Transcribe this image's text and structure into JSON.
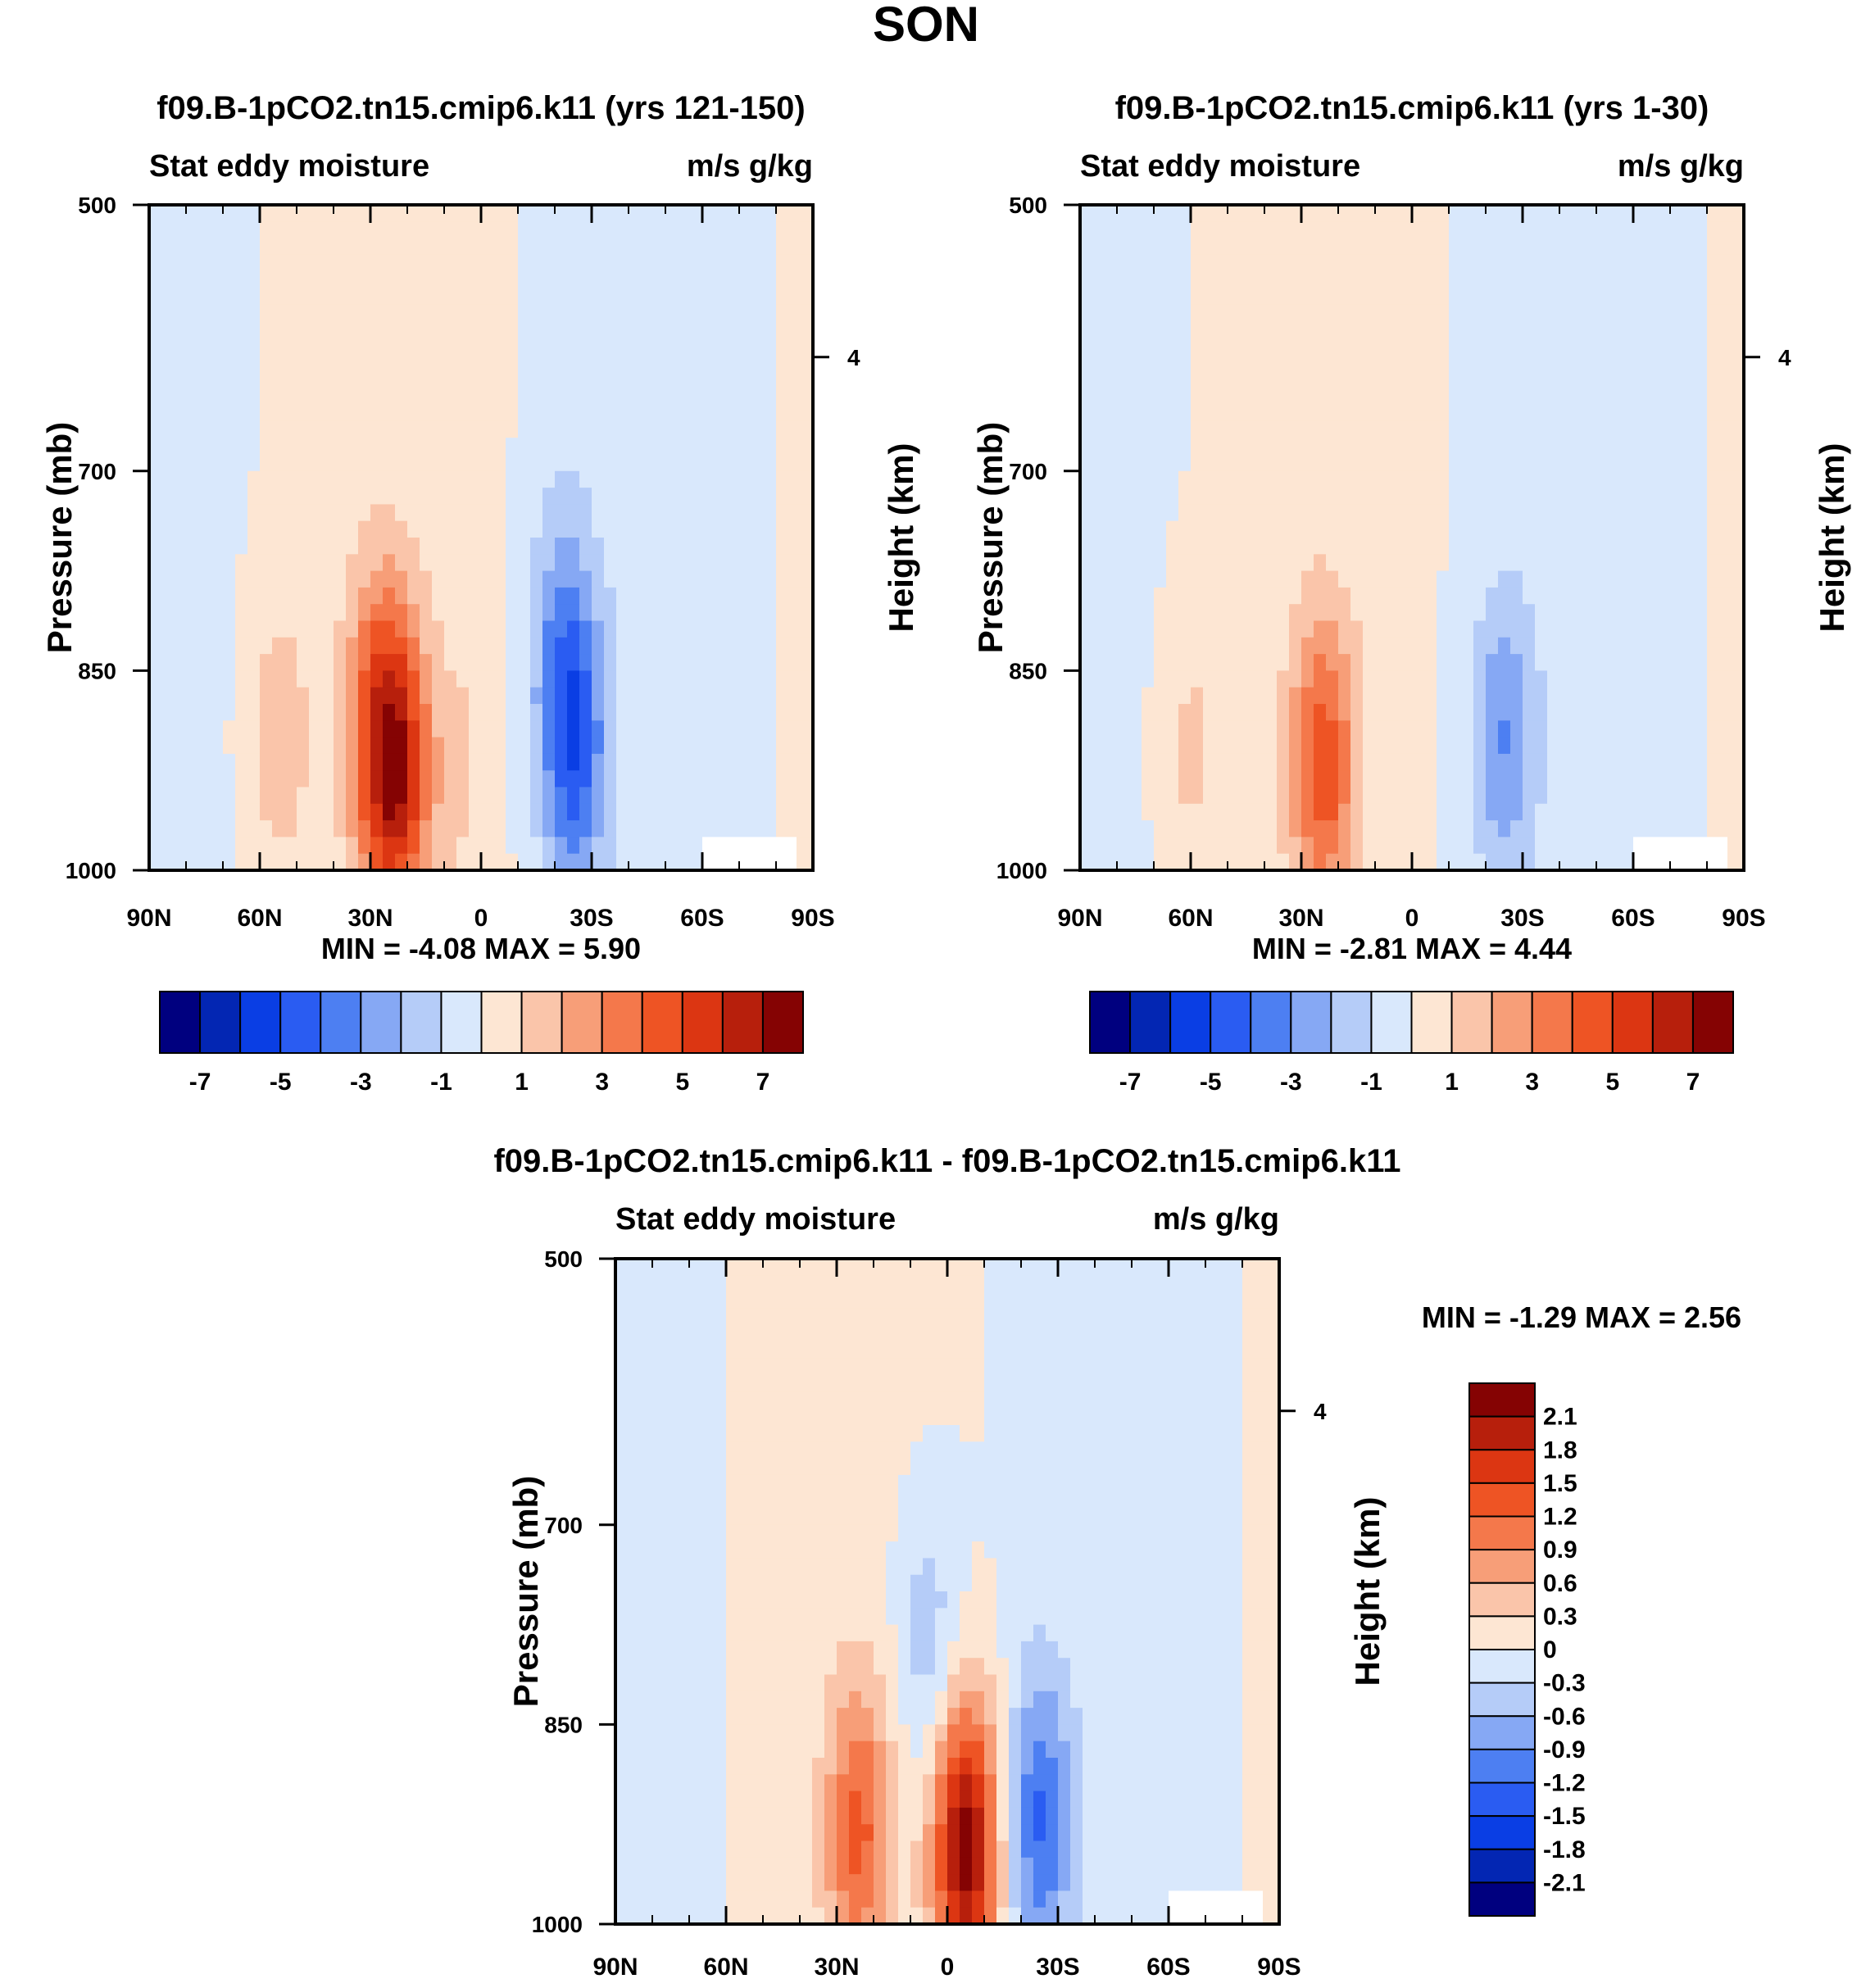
{
  "page_title": "SON",
  "chart_data": [
    {
      "type": "contour",
      "title": "f09.B-1pCO2.tn15.cmip6.k11 (yrs 121-150)",
      "left_subtitle": "Stat eddy moisture",
      "right_subtitle": "m/s g/kg",
      "xlabel": "",
      "ylabel": "Pressure (mb)",
      "y2label": "Height (km)",
      "x_ticks": [
        "90N",
        "60N",
        "30N",
        "0",
        "30S",
        "60S",
        "90S"
      ],
      "x_values": [
        90,
        60,
        30,
        0,
        -30,
        -60,
        -90
      ],
      "y_ticks": [
        "500",
        "700",
        "850",
        "1000"
      ],
      "y_values": [
        500,
        700,
        850,
        1000
      ],
      "y2_ticks": [
        "4"
      ],
      "y2_values": [
        4
      ],
      "ylim": [
        500,
        1000
      ],
      "xlim": [
        90,
        -90
      ],
      "stats": "MIN =  -4.08  MAX =   5.90",
      "min": -4.08,
      "max": 5.9,
      "features": [
        {
          "lat": 23,
          "p": 930,
          "value": 5.5
        },
        {
          "lat": 28,
          "p": 880,
          "value": 3.0
        },
        {
          "lat": 55,
          "p": 900,
          "value": 1.5
        },
        {
          "lat": -25,
          "p": 910,
          "value": -4.0
        },
        {
          "lat": -22,
          "p": 820,
          "value": -2.0
        },
        {
          "lat": 5,
          "p": 920,
          "value": 0.8
        }
      ],
      "colorbar": {
        "orientation": "horizontal",
        "labels": [
          "-7",
          "-5",
          "-3",
          "-1",
          "1",
          "3",
          "5",
          "7"
        ]
      }
    },
    {
      "type": "contour",
      "title": "f09.B-1pCO2.tn15.cmip6.k11 (yrs 1-30)",
      "left_subtitle": "Stat eddy moisture",
      "right_subtitle": "m/s g/kg",
      "xlabel": "",
      "ylabel": "Pressure (mb)",
      "y2label": "Height (km)",
      "x_ticks": [
        "90N",
        "60N",
        "30N",
        "0",
        "30S",
        "60S",
        "90S"
      ],
      "x_values": [
        90,
        60,
        30,
        0,
        -30,
        -60,
        -90
      ],
      "y_ticks": [
        "500",
        "700",
        "850",
        "1000"
      ],
      "y_values": [
        500,
        700,
        850,
        1000
      ],
      "y2_ticks": [
        "4"
      ],
      "y2_values": [
        4
      ],
      "ylim": [
        500,
        1000
      ],
      "xlim": [
        90,
        -90
      ],
      "stats": "MIN =  -2.81  MAX =   4.44",
      "min": -2.81,
      "max": 4.44,
      "features": [
        {
          "lat": 24,
          "p": 920,
          "value": 4.4
        },
        {
          "lat": 60,
          "p": 910,
          "value": 1.2
        },
        {
          "lat": -25,
          "p": 900,
          "value": -2.8
        }
      ],
      "colorbar": {
        "orientation": "horizontal",
        "labels": [
          "-7",
          "-5",
          "-3",
          "-1",
          "1",
          "3",
          "5",
          "7"
        ]
      }
    },
    {
      "type": "contour",
      "title": "f09.B-1pCO2.tn15.cmip6.k11 - f09.B-1pCO2.tn15.cmip6.k11",
      "left_subtitle": "Stat eddy moisture",
      "right_subtitle": "m/s g/kg",
      "xlabel": "",
      "ylabel": "Pressure (mb)",
      "y2label": "Height (km)",
      "x_ticks": [
        "90N",
        "60N",
        "30N",
        "0",
        "30S",
        "60S",
        "90S"
      ],
      "x_values": [
        90,
        60,
        30,
        0,
        -30,
        -60,
        -90
      ],
      "y_ticks": [
        "500",
        "700",
        "850",
        "1000"
      ],
      "y_values": [
        500,
        700,
        850,
        1000
      ],
      "y2_ticks": [
        "4"
      ],
      "y2_values": [
        4
      ],
      "ylim": [
        500,
        1000
      ],
      "xlim": [
        90,
        -90
      ],
      "stats": "MIN =  -1.29  MAX =   2.56",
      "min": -1.29,
      "max": 2.56,
      "features": [
        {
          "lat": -5,
          "p": 940,
          "value": 2.5
        },
        {
          "lat": 24,
          "p": 930,
          "value": 1.3
        },
        {
          "lat": -25,
          "p": 920,
          "value": -1.29
        },
        {
          "lat": 5,
          "p": 790,
          "value": -0.6
        }
      ],
      "colorbar": {
        "orientation": "vertical",
        "labels": [
          "2.1",
          "1.8",
          "1.5",
          "1.2",
          "0.9",
          "0.6",
          "0.3",
          "0",
          "-0.3",
          "-0.6",
          "-0.9",
          "-1.2",
          "-1.5",
          "-1.8",
          "-2.1"
        ]
      }
    }
  ],
  "palette": [
    "#00007f",
    "#0326b3",
    "#0a3ee4",
    "#2a5cf2",
    "#4d7ff2",
    "#86a8f4",
    "#b5ccf8",
    "#d9e8fc",
    "#fde6d3",
    "#fac5aa",
    "#f79e78",
    "#f4784b",
    "#ee5424",
    "#dc3612",
    "#b71f0c",
    "#850303"
  ]
}
